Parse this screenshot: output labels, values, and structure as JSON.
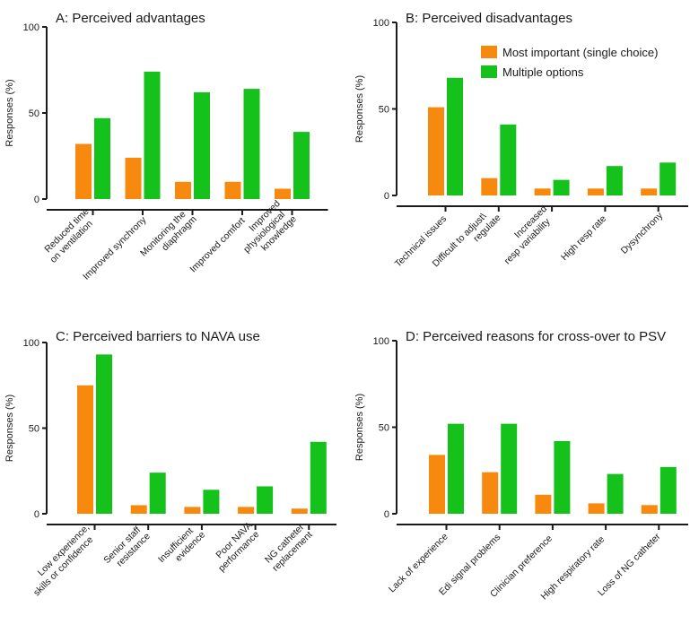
{
  "colors": {
    "series_primary": "#f7890f",
    "series_secondary": "#15c21b",
    "axis": "#1a1a1a"
  },
  "chart_data": [
    {
      "type": "bar",
      "title": "A: Perceived advantages",
      "ylabel": "Responses (%)",
      "xlabel": "",
      "ylim": [
        0,
        100
      ],
      "yticks": [
        "0",
        "50",
        "100"
      ],
      "categories": [
        [
          "Reduced time",
          "on ventilation"
        ],
        [
          "Improved synchrony"
        ],
        [
          "Monitoring the",
          "diaphragm"
        ],
        [
          "Improved comfort"
        ],
        [
          "Improved",
          "physiological",
          "knowledge"
        ]
      ],
      "series": [
        {
          "name": "Most important (single choice)",
          "values": [
            32,
            24,
            10,
            10,
            6
          ]
        },
        {
          "name": "Multiple options",
          "values": [
            47,
            74,
            62,
            64,
            39
          ]
        }
      ],
      "legend": null
    },
    {
      "type": "bar",
      "title": "B: Perceived disadvantages",
      "ylabel": "Responses (%)",
      "xlabel": "",
      "ylim": [
        0,
        100
      ],
      "yticks": [
        "0",
        "50",
        "100"
      ],
      "categories": [
        [
          "Technical issues"
        ],
        [
          "Difficult to adjust\\",
          "regulate"
        ],
        [
          "Increased",
          "resp variability"
        ],
        [
          "High resp rate"
        ],
        [
          "Dysynchrony"
        ]
      ],
      "series": [
        {
          "name": "Most important (single choice)",
          "values": [
            51,
            10,
            4,
            4,
            4
          ]
        },
        {
          "name": "Multiple options",
          "values": [
            68,
            41,
            9,
            17,
            19
          ]
        }
      ],
      "legend": "top-right"
    },
    {
      "type": "bar",
      "title": "C: Perceived barriers to NAVA use",
      "ylabel": "Responses (%)",
      "xlabel": "",
      "ylim": [
        0,
        100
      ],
      "yticks": [
        "0",
        "50",
        "100"
      ],
      "categories": [
        [
          "Low experience,",
          "skills or confidence"
        ],
        [
          "Senior staff",
          "resistance"
        ],
        [
          "Insufficient",
          "evidence"
        ],
        [
          "Poor NAVA",
          "performance"
        ],
        [
          "NG catheter",
          "replacement"
        ]
      ],
      "series": [
        {
          "name": "Most important (single choice)",
          "values": [
            75,
            5,
            4,
            4,
            3
          ]
        },
        {
          "name": "Multiple options",
          "values": [
            93,
            24,
            14,
            16,
            42
          ]
        }
      ],
      "legend": null
    },
    {
      "type": "bar",
      "title": "D: Perceived reasons for cross-over to PSV",
      "ylabel": "Responses (%)",
      "xlabel": "",
      "ylim": [
        0,
        100
      ],
      "yticks": [
        "0",
        "50",
        "100"
      ],
      "categories": [
        [
          "Lack of experience"
        ],
        [
          "Edi signal problems"
        ],
        [
          "Clinician preference"
        ],
        [
          "High respiratory rate"
        ],
        [
          "Loss of NG catheter"
        ]
      ],
      "series": [
        {
          "name": "Most important (single choice)",
          "values": [
            34,
            24,
            11,
            6,
            5
          ]
        },
        {
          "name": "Multiple options",
          "values": [
            52,
            52,
            42,
            23,
            27
          ]
        }
      ],
      "legend": null
    }
  ]
}
